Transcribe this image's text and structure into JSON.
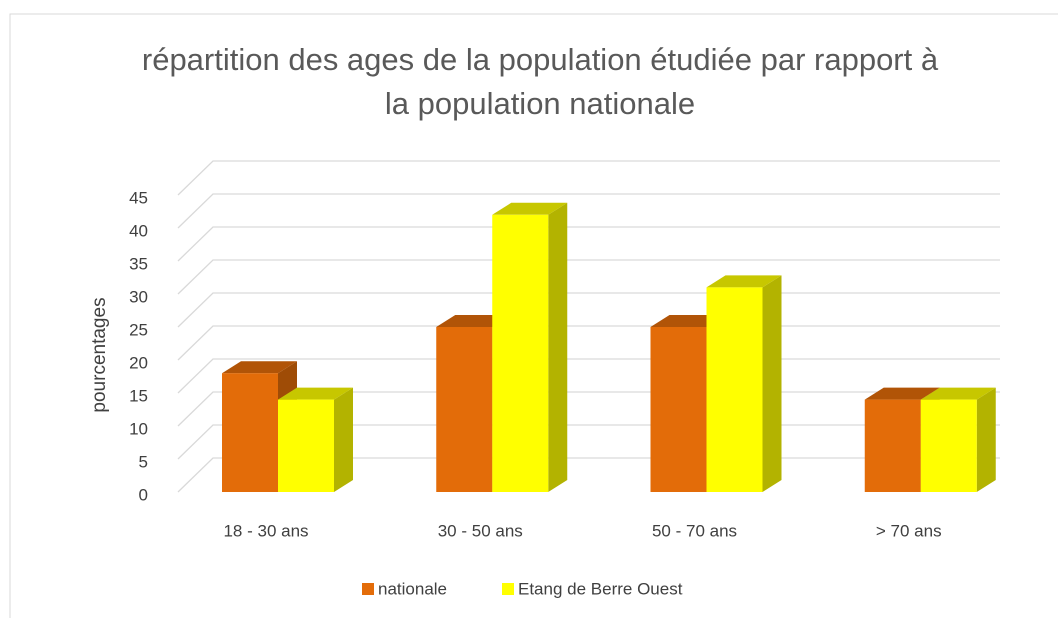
{
  "chart_data": {
    "type": "bar3d",
    "title": "répartition des ages de la population étudiée par rapport à la population nationale",
    "y_label": "pourcentages",
    "categories": [
      "18 - 30 ans",
      "30 - 50 ans",
      "50 - 70 ans",
      "> 70 ans"
    ],
    "series": [
      {
        "name": "nationale",
        "color": "#e36c09",
        "values": [
          18,
          25,
          25,
          14
        ]
      },
      {
        "name": "Etang de Berre Ouest",
        "color": "#ffff00",
        "values": [
          14,
          42,
          31,
          14
        ]
      }
    ],
    "ylim": [
      0,
      45
    ],
    "yticks": [
      0,
      5,
      10,
      15,
      20,
      25,
      30,
      35,
      40,
      45
    ],
    "grid": true,
    "legend": "bottom"
  }
}
